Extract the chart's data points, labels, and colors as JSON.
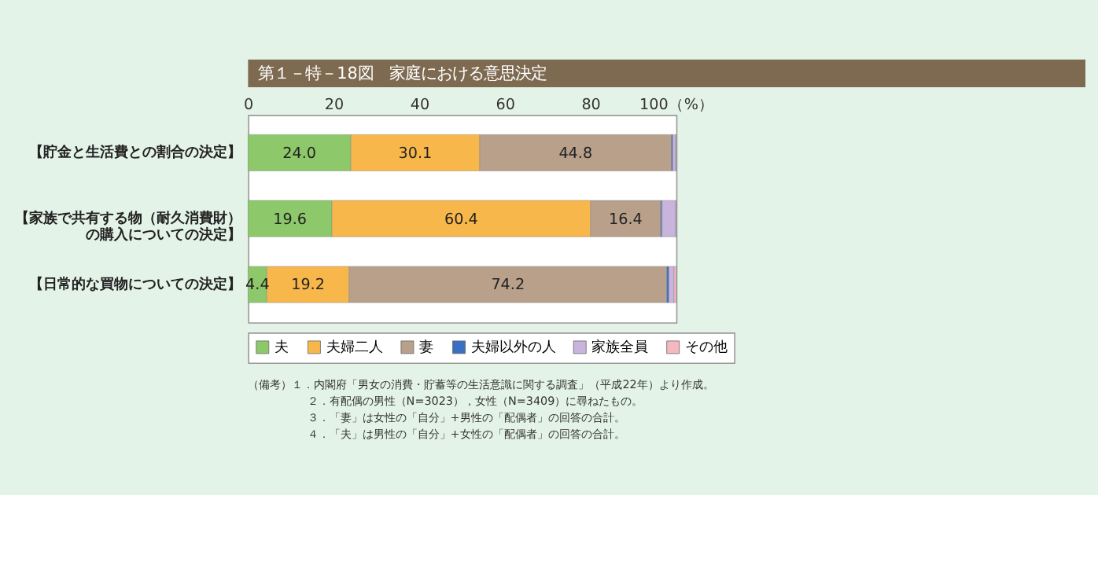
{
  "chart_data": {
    "type": "bar",
    "orientation": "horizontal",
    "stacked": true,
    "title": "第１－特－18図　家庭における意思決定",
    "categories": [
      "【貯金と生活費との割合の決定】",
      "【家族で共有する物（耐久消費財）の購入についての決定】",
      "【日常的な買物についての決定】"
    ],
    "series": [
      {
        "name": "夫",
        "color": "#8dc86a",
        "values": [
          24.0,
          19.6,
          4.4
        ],
        "value_labels": [
          "24.0",
          "19.6",
          "4.4"
        ]
      },
      {
        "name": "夫婦二人",
        "color": "#f8b74a",
        "values": [
          30.1,
          60.4,
          19.2
        ],
        "value_labels": [
          "30.1",
          "60.4",
          "19.2"
        ]
      },
      {
        "name": "妻",
        "color": "#b8a08a",
        "values": [
          44.8,
          16.4,
          74.2
        ],
        "value_labels": [
          "44.8",
          "16.4",
          "74.2"
        ]
      },
      {
        "name": "夫婦以外の人",
        "color": "#3a6fc4",
        "values": [
          0.3,
          0.3,
          0.5
        ]
      },
      {
        "name": "家族全員",
        "color": "#c8b4dc",
        "values": [
          0.7,
          3.2,
          1.2
        ]
      },
      {
        "name": "その他",
        "color": "#f4b8c0",
        "values": [
          0.1,
          0.1,
          0.5
        ]
      }
    ],
    "xlim": [
      0,
      100
    ],
    "xticks": [
      0,
      20,
      40,
      60,
      80,
      {
        "value": 100,
        "label": "100（%）"
      }
    ],
    "grid": false,
    "legend": "bottom",
    "annotations": [
      "（備考）１．内閣府「男女の消費・貯蓄等の生活意識に関する調査」（平成22年）より作成。",
      "２．有配偶の男性（N=3023），女性（N=3409）に尋ねたもの。",
      "３．「妻」は女性の「自分」+男性の「配偶者」の回答の合計。",
      "４．「夫」は男性の「自分」+女性の「配偶者」の回答の合計。"
    ]
  }
}
